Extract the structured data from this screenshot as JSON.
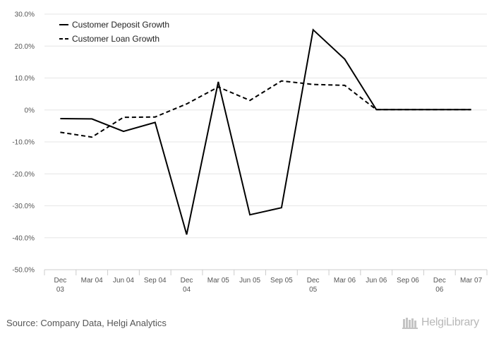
{
  "chart_data": {
    "type": "line",
    "title": "",
    "xlabel": "",
    "ylabel": "",
    "categories": [
      "Dec 03",
      "Mar 04",
      "Jun 04",
      "Sep 04",
      "Dec 04",
      "Mar 05",
      "Jun 05",
      "Sep 05",
      "Dec 05",
      "Mar 06",
      "Jun 06",
      "Sep 06",
      "Dec 06",
      "Mar 07"
    ],
    "category_labels": [
      [
        "Dec",
        "03"
      ],
      [
        "Mar 04"
      ],
      [
        "Jun 04"
      ],
      [
        "Sep 04"
      ],
      [
        "Dec",
        "04"
      ],
      [
        "Mar 05"
      ],
      [
        "Jun 05"
      ],
      [
        "Sep 05"
      ],
      [
        "Dec",
        "05"
      ],
      [
        "Mar 06"
      ],
      [
        "Jun 06"
      ],
      [
        "Sep 06"
      ],
      [
        "Dec",
        "06"
      ],
      [
        "Mar 07"
      ]
    ],
    "ylim": [
      -50,
      30
    ],
    "yticks": [
      30,
      20,
      10,
      0,
      -10,
      -20,
      -30,
      -40,
      -50
    ],
    "ytick_labels": [
      "30.0%",
      "20.0%",
      "10.0%",
      "0%",
      "-10.0%",
      "-20.0%",
      "-30.0%",
      "-40.0%",
      "-50.0%"
    ],
    "grid": true,
    "legend_position": "top-left",
    "series": [
      {
        "name": "Customer Deposit Growth",
        "style": "solid",
        "color": "#000000",
        "values": [
          -2.7,
          -2.8,
          -6.7,
          -3.9,
          -39.0,
          8.8,
          -32.8,
          -30.6,
          25.1,
          15.9,
          0.1,
          0.1,
          0.1,
          0.1
        ]
      },
      {
        "name": "Customer Loan Growth",
        "style": "dashed",
        "color": "#000000",
        "values": [
          -7.0,
          -8.5,
          -2.3,
          -2.2,
          1.9,
          7.2,
          3.0,
          9.1,
          8.0,
          7.7,
          0.1,
          0.1,
          0.1,
          0.1
        ]
      }
    ]
  },
  "footer": {
    "source": "Source: Company Data, Helgi Analytics",
    "brand": "HelgiLibrary"
  },
  "colors": {
    "grid": "#e6e6e6",
    "axis": "#cccccc",
    "tick_text": "#555555",
    "brand": "#b8b8b8"
  }
}
